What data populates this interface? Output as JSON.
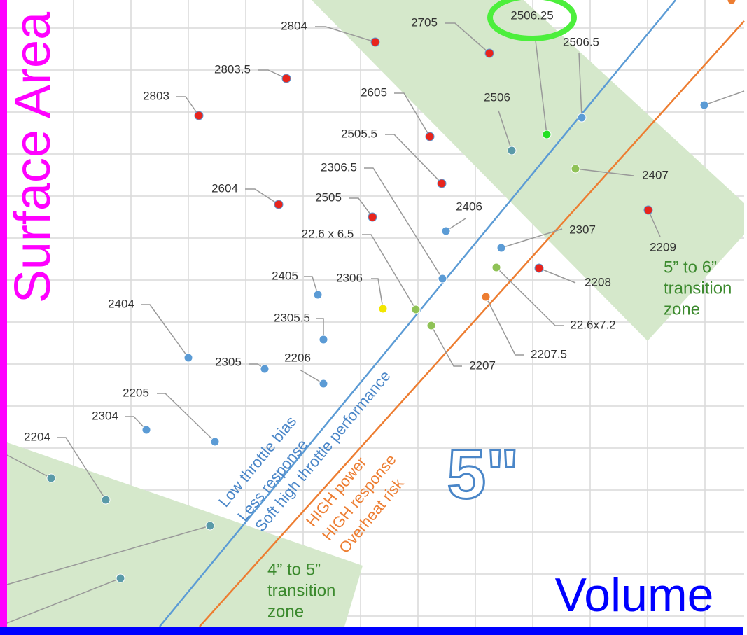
{
  "y_title": "Surface Area",
  "x_title": "Volume",
  "size_label": "5\"",
  "blue_note": [
    "Low throttle bias",
    "Less response",
    "Soft high throttle performance"
  ],
  "orange_note": [
    "HIGH power",
    "HIGH response",
    "Overheat risk"
  ],
  "zones": [
    [
      "5” to 6”",
      "transition",
      "zone"
    ],
    [
      "4” to 5”",
      "transition",
      "zone"
    ]
  ],
  "points": [
    "2804",
    "2705",
    "2506.25",
    "2506.5",
    "2803.5",
    "2803",
    "2605",
    "2506",
    "2505.5",
    "2306.5",
    "2407",
    "2604",
    "2505",
    "2406",
    "2307",
    "2209",
    "22.6 x 6.5",
    "2208",
    "2405",
    "2306",
    "22.6x7.2",
    "2305.5",
    "2404",
    "2207.5",
    "2207",
    "2305",
    "2206",
    "2205",
    "2304",
    "2204"
  ]
}
